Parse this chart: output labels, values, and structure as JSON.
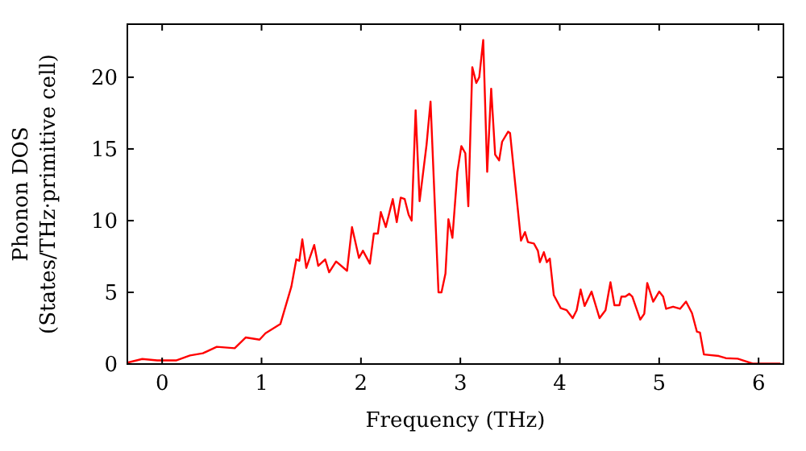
{
  "chart_data": {
    "type": "line",
    "xlabel": "Frequency (THz)",
    "ylabel": "Phonon DOS\n(States/THz·primitive cell)",
    "xlim": [
      -0.35,
      6.25
    ],
    "ylim": [
      0,
      23.7
    ],
    "xticks": [
      0,
      1,
      2,
      3,
      4,
      5,
      6
    ],
    "yticks": [
      0,
      5,
      10,
      15,
      20
    ],
    "grid": false,
    "marker": "none",
    "line_style": "solid",
    "series": [
      {
        "color": "#ff0000",
        "x": [
          -0.35,
          -0.2,
          -0.05,
          0.14,
          0.28,
          0.41,
          0.55,
          0.73,
          0.84,
          0.98,
          1.04,
          1.19,
          1.3,
          1.35,
          1.38,
          1.41,
          1.45,
          1.53,
          1.57,
          1.64,
          1.68,
          1.75,
          1.86,
          1.91,
          1.98,
          2.02,
          2.09,
          2.13,
          2.17,
          2.2,
          2.25,
          2.32,
          2.36,
          2.4,
          2.44,
          2.48,
          2.51,
          2.55,
          2.59,
          2.66,
          2.7,
          2.78,
          2.81,
          2.85,
          2.88,
          2.92,
          2.97,
          3.01,
          3.05,
          3.08,
          3.12,
          3.16,
          3.19,
          3.23,
          3.27,
          3.31,
          3.35,
          3.39,
          3.42,
          3.48,
          3.5,
          3.61,
          3.65,
          3.68,
          3.74,
          3.78,
          3.8,
          3.84,
          3.87,
          3.9,
          3.94,
          4.01,
          4.07,
          4.13,
          4.17,
          4.21,
          4.25,
          4.32,
          4.4,
          4.46,
          4.51,
          4.55,
          4.6,
          4.62,
          4.66,
          4.7,
          4.73,
          4.81,
          4.85,
          4.88,
          4.94,
          5.0,
          5.04,
          5.07,
          5.14,
          5.21,
          5.27,
          5.33,
          5.38,
          5.41,
          5.45,
          5.6,
          5.67,
          5.79,
          5.94,
          6.22
        ],
        "values": [
          0.1,
          0.35,
          0.25,
          0.25,
          0.6,
          0.75,
          1.2,
          1.1,
          1.85,
          1.7,
          2.15,
          2.8,
          5.4,
          7.3,
          7.2,
          8.7,
          6.7,
          8.3,
          6.85,
          7.3,
          6.4,
          7.15,
          6.5,
          9.55,
          7.4,
          7.9,
          7.0,
          9.1,
          9.1,
          10.6,
          9.55,
          11.5,
          9.9,
          11.6,
          11.5,
          10.4,
          10.0,
          17.7,
          11.35,
          15.3,
          18.3,
          5.0,
          5.0,
          6.3,
          10.1,
          8.8,
          13.4,
          15.2,
          14.7,
          11.0,
          20.7,
          19.6,
          20.0,
          22.6,
          13.4,
          19.2,
          14.6,
          14.2,
          15.5,
          16.2,
          16.1,
          8.6,
          9.2,
          8.5,
          8.4,
          7.9,
          7.1,
          7.8,
          7.1,
          7.35,
          4.8,
          3.9,
          3.75,
          3.2,
          3.75,
          5.2,
          4.05,
          5.05,
          3.2,
          3.75,
          5.7,
          4.1,
          4.1,
          4.7,
          4.7,
          4.9,
          4.7,
          3.1,
          3.5,
          5.65,
          4.35,
          5.05,
          4.7,
          3.85,
          4.0,
          3.85,
          4.35,
          3.55,
          2.25,
          2.2,
          0.67,
          0.56,
          0.41,
          0.37,
          0.03,
          0.03
        ]
      }
    ]
  }
}
